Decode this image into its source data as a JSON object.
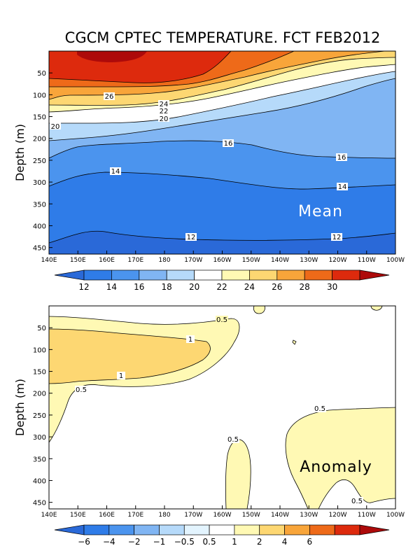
{
  "title": "CGCM CPTEC TEMPERATURE. FCT FEB2012",
  "chart_data": [
    {
      "type": "contour",
      "panel": "mean",
      "title": "CGCM CPTEC TEMPERATURE. FCT FEB2012",
      "panel_label": "Mean",
      "xlabel": "",
      "ylabel": "Depth (m)",
      "x_ticks": [
        "140E",
        "150E",
        "160E",
        "170E",
        "180",
        "170W",
        "160W",
        "150W",
        "140W",
        "130W",
        "120W",
        "110W",
        "100W"
      ],
      "y_ticks": [
        50,
        100,
        150,
        200,
        250,
        300,
        350,
        400,
        450
      ],
      "ylim": [
        465,
        0
      ],
      "colorbar": {
        "labels": [
          "12",
          "14",
          "16",
          "18",
          "20",
          "22",
          "24",
          "26",
          "28",
          "30"
        ],
        "colors": [
          "#2a69d8",
          "#2f7ce8",
          "#4b94ee",
          "#80b5f3",
          "#b6dafa",
          "#ffffff",
          "#fff9b4",
          "#fdd772",
          "#f8a53a",
          "#ee6a19",
          "#dd2a0d",
          "#ad0a0a"
        ]
      },
      "contour_labels": [
        "26",
        "24",
        "22",
        "20",
        "20",
        "16",
        "16",
        "14",
        "14",
        "12",
        "12"
      ]
    },
    {
      "type": "contour",
      "panel": "anomaly",
      "panel_label": "Anomaly",
      "xlabel": "",
      "ylabel": "Depth (m)",
      "x_ticks": [
        "140E",
        "150E",
        "160E",
        "170E",
        "180",
        "170W",
        "160W",
        "150W",
        "140W",
        "130W",
        "120W",
        "110W",
        "100W"
      ],
      "y_ticks": [
        50,
        100,
        150,
        200,
        250,
        300,
        350,
        400,
        450
      ],
      "ylim": [
        465,
        0
      ],
      "colorbar": {
        "labels": [
          "−6",
          "−4",
          "−2",
          "−1",
          "−0.5",
          "0.5",
          "1",
          "2",
          "4",
          "6"
        ],
        "colors": [
          "#2a69d8",
          "#2f7ce8",
          "#4b94ee",
          "#80b5f3",
          "#b6dafa",
          "#e3f4fe",
          "#ffffff",
          "#fff9b4",
          "#fdd772",
          "#f8a53a",
          "#ee6a19",
          "#dd2a0d",
          "#ad0a0a"
        ]
      },
      "contour_labels": [
        "0.5",
        "1",
        "1",
        "0.5",
        "0.5",
        "0.5",
        "0.5"
      ]
    }
  ]
}
